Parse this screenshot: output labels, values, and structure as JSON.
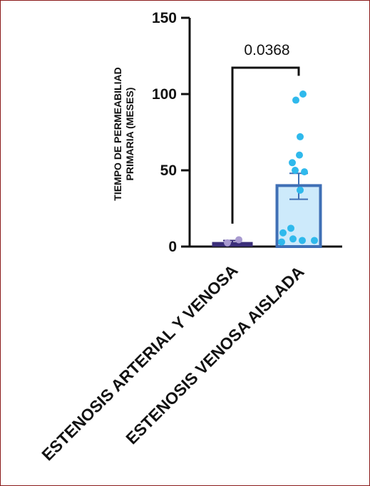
{
  "colors": {
    "frame": "#8b1a1a",
    "axis": "#111111",
    "group1_fill": "#3b2f7a",
    "group1_point": "#a89ad0",
    "group2_fill": "#cdeafb",
    "group2_stroke": "#3f6fb5",
    "group2_point": "#2fb9ec"
  },
  "chart_data": {
    "type": "bar",
    "ylabel": [
      "TIEMPO DE PERMEABILIAD",
      "PRIMARIA (MESES)"
    ],
    "ylim": [
      0,
      150
    ],
    "yticks": [
      0,
      50,
      100,
      150
    ],
    "ytick_labels": [
      "0",
      "50",
      "100",
      "150"
    ],
    "categories": [
      "ESTENOSIS ARTERIAL Y VENOSA",
      "ESTENOSIS VENOSA AISLADA"
    ],
    "means": [
      3,
      40
    ],
    "error_bars": [
      {
        "low": 2,
        "high": 4
      },
      {
        "low": 31,
        "high": 48
      }
    ],
    "points": [
      [
        2,
        4
      ],
      [
        100,
        96,
        72,
        60,
        55,
        50,
        49,
        37,
        12,
        9,
        5,
        4,
        4,
        3
      ]
    ],
    "annotation": {
      "text": "0.0368",
      "between": [
        0,
        1
      ]
    }
  }
}
